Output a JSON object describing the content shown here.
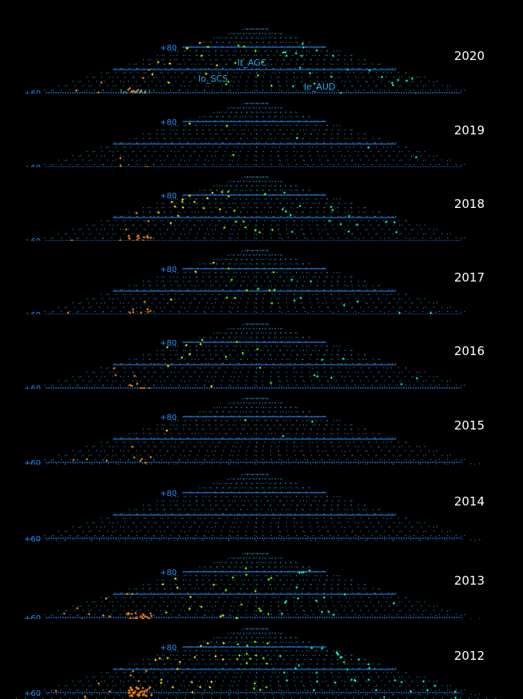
{
  "chart_data": {
    "type": "scatter",
    "title": "",
    "projection": "polar stereographic perspective grid",
    "grid": true,
    "latitude_labels": [
      "+80",
      "+60"
    ],
    "panels": [
      {
        "year": "2020",
        "region_labels": [
          "lt_AGC",
          "lo_SCS",
          "le_AUD",
          "lo_XAU"
        ],
        "density": "high"
      },
      {
        "year": "2019",
        "region_labels": [],
        "density": "low"
      },
      {
        "year": "2018",
        "region_labels": [],
        "density": "high"
      },
      {
        "year": "2017",
        "region_labels": [],
        "density": "medium"
      },
      {
        "year": "2016",
        "region_labels": [],
        "density": "medium"
      },
      {
        "year": "2015",
        "region_labels": [],
        "density": "low"
      },
      {
        "year": "2014",
        "region_labels": [],
        "density": "none"
      },
      {
        "year": "2013",
        "region_labels": [],
        "density": "high"
      },
      {
        "year": "2012",
        "region_labels": [],
        "density": "very high"
      }
    ],
    "colors": {
      "grid": "#1ea8e0",
      "lines": "#1e90ff",
      "west": "#ff8000",
      "mid_west": "#ffe000",
      "center": "#66ff00",
      "east": "#00ffd0",
      "year_text": "#ffffff"
    }
  }
}
